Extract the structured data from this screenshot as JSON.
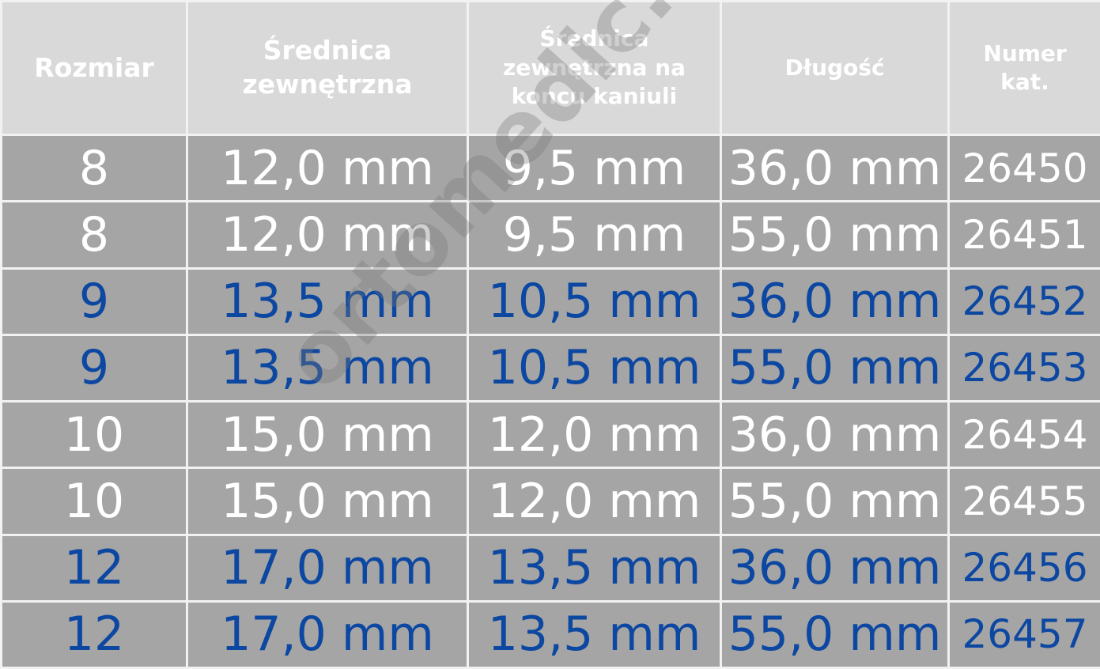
{
  "headers": [
    "Rozmiar",
    "Średnica zewnętrzna",
    "Średnica zewnętrzna na koncu kaniuli",
    "Długość",
    "Numer kat."
  ],
  "rows": [
    {
      "size": "8",
      "outer": "12,0 mm",
      "tip": "9,5 mm",
      "length": "36,0 mm",
      "cat": "26450"
    },
    {
      "size": "8",
      "outer": "12,0 mm",
      "tip": "9,5 mm",
      "length": "55,0 mm",
      "cat": "26451"
    },
    {
      "size": "9",
      "outer": "13,5 mm",
      "tip": "10,5 mm",
      "length": "36,0 mm",
      "cat": "26452"
    },
    {
      "size": "9",
      "outer": "13,5 mm",
      "tip": "10,5 mm",
      "length": "55,0 mm",
      "cat": "26453"
    },
    {
      "size": "10",
      "outer": "15,0 mm",
      "tip": "12,0 mm",
      "length": "36,0 mm",
      "cat": "26454"
    },
    {
      "size": "10",
      "outer": "15,0 mm",
      "tip": "12,0 mm",
      "length": "55,0 mm",
      "cat": "26455"
    },
    {
      "size": "12",
      "outer": "17,0 mm",
      "tip": "13,5 mm",
      "length": "36,0 mm",
      "cat": "26456"
    },
    {
      "size": "12",
      "outer": "17,0 mm",
      "tip": "13,5 mm",
      "length": "55,0 mm",
      "cat": "26457"
    }
  ],
  "colors": {
    "header_bg": "#d9d9d9",
    "body_bg": "#a5a5a5",
    "text_white": "#ffffff",
    "text_blue": "#0c47a1"
  }
}
